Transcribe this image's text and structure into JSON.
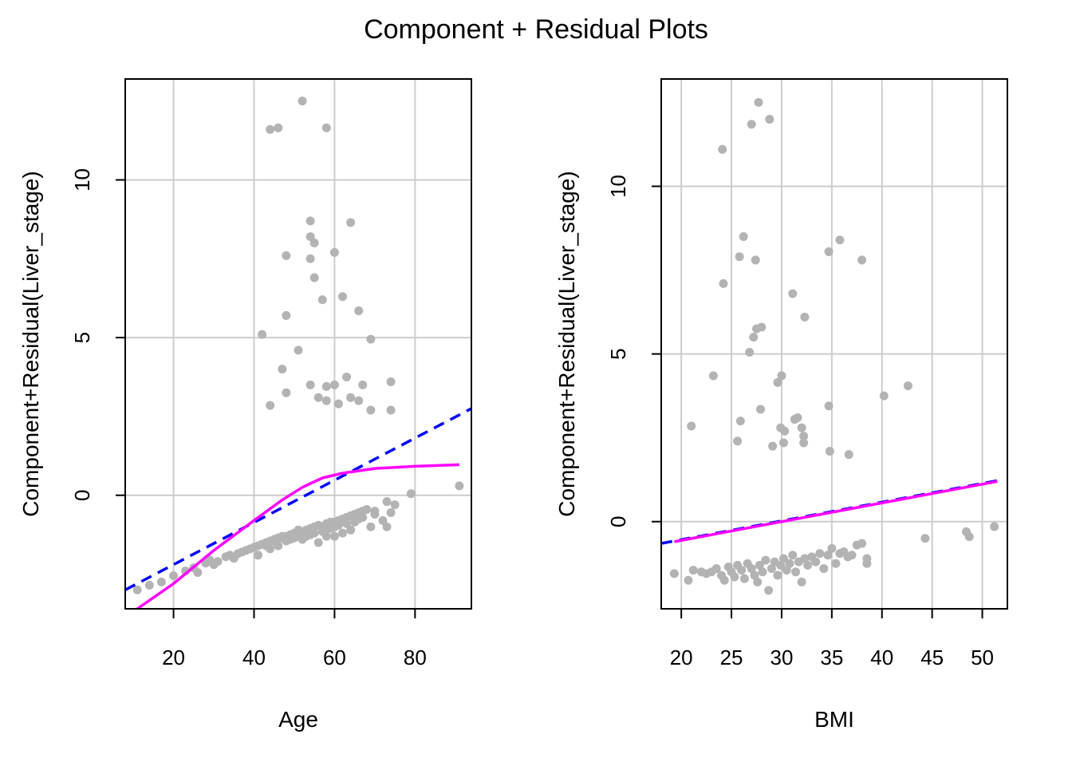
{
  "title": "Component + Residual Plots",
  "colors": {
    "points": "#b3b3b3",
    "linear_fit": "#0000ff",
    "smooth_fit": "#ff00ff",
    "grid": "#cccccc"
  },
  "chart_data": [
    {
      "type": "scatter",
      "xlabel": "Age",
      "ylabel": "Component+Residual(Liver_stage)",
      "xlim": [
        8,
        94
      ],
      "ylim": [
        -3.6,
        13.2
      ],
      "xticks": [
        20,
        40,
        60,
        80
      ],
      "yticks": [
        0,
        5,
        10
      ],
      "grid": true,
      "points": [
        [
          11,
          -3.0
        ],
        [
          14,
          -2.85
        ],
        [
          17,
          -2.75
        ],
        [
          20,
          -2.55
        ],
        [
          23,
          -2.4
        ],
        [
          25,
          -2.3
        ],
        [
          26,
          -2.45
        ],
        [
          28,
          -2.15
        ],
        [
          29,
          -2.05
        ],
        [
          30,
          -2.2
        ],
        [
          31,
          -2.1
        ],
        [
          33,
          -1.95
        ],
        [
          34,
          -1.9
        ],
        [
          35,
          -2.0
        ],
        [
          36,
          -1.85
        ],
        [
          37,
          -1.8
        ],
        [
          38,
          -1.75
        ],
        [
          39,
          -1.7
        ],
        [
          40,
          -1.65
        ],
        [
          41,
          -1.6
        ],
        [
          41,
          -1.9
        ],
        [
          42,
          -1.55
        ],
        [
          43,
          -1.6
        ],
        [
          43,
          -1.5
        ],
        [
          44,
          -1.45
        ],
        [
          44,
          -1.7
        ],
        [
          45,
          -1.45
        ],
        [
          45,
          -1.4
        ],
        [
          46,
          -1.35
        ],
        [
          46,
          -1.6
        ],
        [
          47,
          -1.35
        ],
        [
          47,
          -1.3
        ],
        [
          48,
          -1.3
        ],
        [
          48,
          -1.45
        ],
        [
          49,
          -1.25
        ],
        [
          49,
          -1.4
        ],
        [
          50,
          -1.2
        ],
        [
          50,
          -1.35
        ],
        [
          51,
          -1.2
        ],
        [
          51,
          -1.1
        ],
        [
          52,
          -1.15
        ],
        [
          52,
          -1.4
        ],
        [
          53,
          -1.1
        ],
        [
          53,
          -1.3
        ],
        [
          54,
          -1.05
        ],
        [
          54,
          -1.25
        ],
        [
          55,
          -1.0
        ],
        [
          55,
          -1.2
        ],
        [
          56,
          -1.5
        ],
        [
          56,
          -0.95
        ],
        [
          57,
          -1.0
        ],
        [
          57,
          -1.15
        ],
        [
          58,
          -0.9
        ],
        [
          58,
          -1.1
        ],
        [
          58,
          -1.3
        ],
        [
          59,
          -0.85
        ],
        [
          59,
          -1.05
        ],
        [
          60,
          -0.85
        ],
        [
          60,
          -1.0
        ],
        [
          60,
          -1.3
        ],
        [
          61,
          -0.8
        ],
        [
          61,
          -0.95
        ],
        [
          62,
          -0.75
        ],
        [
          62,
          -1.2
        ],
        [
          63,
          -0.7
        ],
        [
          63,
          -0.9
        ],
        [
          64,
          -0.65
        ],
        [
          64,
          -1.1
        ],
        [
          65,
          -0.6
        ],
        [
          65,
          -0.85
        ],
        [
          66,
          -0.55
        ],
        [
          66,
          -0.75
        ],
        [
          67,
          -0.5
        ],
        [
          67,
          -0.7
        ],
        [
          68,
          -0.45
        ],
        [
          69,
          -1.0
        ],
        [
          70,
          -0.5
        ],
        [
          70,
          -0.6
        ],
        [
          72,
          -0.8
        ],
        [
          73,
          -1.0
        ],
        [
          73,
          -0.2
        ],
        [
          74,
          -0.55
        ],
        [
          75,
          -0.3
        ],
        [
          79,
          0.05
        ],
        [
          91,
          0.3
        ],
        [
          44,
          2.85
        ],
        [
          48,
          3.25
        ],
        [
          47,
          4.0
        ],
        [
          42,
          5.1
        ],
        [
          51,
          4.6
        ],
        [
          54,
          3.5
        ],
        [
          56,
          3.1
        ],
        [
          58,
          3.0
        ],
        [
          58,
          3.45
        ],
        [
          60,
          3.5
        ],
        [
          61,
          2.9
        ],
        [
          63,
          3.75
        ],
        [
          64,
          3.1
        ],
        [
          66,
          3.0
        ],
        [
          67,
          3.5
        ],
        [
          69,
          2.7
        ],
        [
          74,
          2.7
        ],
        [
          74,
          3.6
        ],
        [
          57,
          6.2
        ],
        [
          55,
          6.9
        ],
        [
          62,
          6.3
        ],
        [
          66,
          5.85
        ],
        [
          69,
          4.95
        ],
        [
          48,
          5.7
        ],
        [
          48,
          7.6
        ],
        [
          54,
          7.5
        ],
        [
          54,
          8.2
        ],
        [
          55,
          8.0
        ],
        [
          54,
          8.7
        ],
        [
          60,
          7.7
        ],
        [
          64,
          8.65
        ],
        [
          44,
          11.6
        ],
        [
          46,
          11.65
        ],
        [
          52,
          12.5
        ],
        [
          58,
          11.65
        ]
      ],
      "linear_fit": {
        "x": [
          8,
          94
        ],
        "y": [
          -3.0,
          2.75
        ]
      },
      "smooth_fit": {
        "x": [
          11,
          20,
          30,
          40,
          47,
          52,
          57,
          62,
          70,
          80,
          91
        ],
        "y": [
          -3.6,
          -2.8,
          -1.75,
          -0.8,
          -0.15,
          0.25,
          0.55,
          0.7,
          0.85,
          0.92,
          0.97
        ]
      }
    },
    {
      "type": "scatter",
      "xlabel": "BMI",
      "ylabel": "Component+Residual(Liver_stage)",
      "xlim": [
        18,
        52.5
      ],
      "ylim": [
        -2.6,
        13.2
      ],
      "xticks": [
        20,
        25,
        30,
        35,
        40,
        45,
        50
      ],
      "yticks": [
        0,
        5,
        10
      ],
      "grid": true,
      "points": [
        [
          19.3,
          -1.55
        ],
        [
          20.7,
          -1.75
        ],
        [
          21.2,
          -1.45
        ],
        [
          22.0,
          -1.5
        ],
        [
          22.5,
          -1.55
        ],
        [
          23.0,
          -1.5
        ],
        [
          23.5,
          -1.4
        ],
        [
          24.0,
          -1.6
        ],
        [
          24.3,
          -1.75
        ],
        [
          24.7,
          -1.35
        ],
        [
          25.0,
          -1.5
        ],
        [
          25.3,
          -1.65
        ],
        [
          25.6,
          -1.3
        ],
        [
          26.0,
          -1.45
        ],
        [
          26.3,
          -1.7
        ],
        [
          26.6,
          -1.25
        ],
        [
          27.0,
          -1.4
        ],
        [
          27.3,
          -1.6
        ],
        [
          27.6,
          -1.8
        ],
        [
          27.8,
          -1.3
        ],
        [
          28.1,
          -1.5
        ],
        [
          28.4,
          -1.15
        ],
        [
          28.7,
          -2.05
        ],
        [
          29.0,
          -1.4
        ],
        [
          29.3,
          -1.2
        ],
        [
          29.6,
          -1.6
        ],
        [
          29.9,
          -1.3
        ],
        [
          30.2,
          -1.1
        ],
        [
          30.5,
          -1.45
        ],
        [
          30.8,
          -1.25
        ],
        [
          31.1,
          -1.0
        ],
        [
          31.4,
          -1.5
        ],
        [
          31.7,
          -1.2
        ],
        [
          32.0,
          -1.8
        ],
        [
          32.3,
          -1.1
        ],
        [
          32.6,
          -1.3
        ],
        [
          33.0,
          -1.05
        ],
        [
          33.4,
          -1.2
        ],
        [
          33.8,
          -0.95
        ],
        [
          34.2,
          -1.4
        ],
        [
          34.6,
          -1.0
        ],
        [
          35.0,
          -0.8
        ],
        [
          35.4,
          -1.25
        ],
        [
          35.8,
          -0.95
        ],
        [
          36.2,
          -0.9
        ],
        [
          36.6,
          -1.05
        ],
        [
          37.0,
          -1.0
        ],
        [
          37.5,
          -0.7
        ],
        [
          38.0,
          -0.65
        ],
        [
          38.5,
          -1.1
        ],
        [
          38.5,
          -1.25
        ],
        [
          44.3,
          -0.5
        ],
        [
          48.4,
          -0.3
        ],
        [
          48.7,
          -0.45
        ],
        [
          51.2,
          -0.15
        ],
        [
          21.0,
          2.85
        ],
        [
          23.2,
          4.35
        ],
        [
          24.1,
          11.1
        ],
        [
          24.2,
          7.1
        ],
        [
          25.8,
          7.9
        ],
        [
          25.9,
          3.0
        ],
        [
          26.2,
          8.5
        ],
        [
          25.6,
          2.4
        ],
        [
          26.8,
          5.05
        ],
        [
          27.2,
          5.5
        ],
        [
          27.5,
          5.75
        ],
        [
          27.4,
          7.8
        ],
        [
          27.7,
          12.5
        ],
        [
          27.0,
          11.85
        ],
        [
          28.0,
          5.8
        ],
        [
          28.8,
          12.0
        ],
        [
          27.9,
          3.35
        ],
        [
          29.1,
          2.25
        ],
        [
          29.6,
          4.15
        ],
        [
          29.9,
          2.8
        ],
        [
          30.0,
          4.35
        ],
        [
          30.2,
          2.35
        ],
        [
          30.3,
          2.7
        ],
        [
          31.1,
          6.8
        ],
        [
          31.3,
          3.05
        ],
        [
          31.6,
          3.1
        ],
        [
          32.0,
          2.8
        ],
        [
          32.2,
          2.55
        ],
        [
          32.3,
          6.1
        ],
        [
          32.2,
          2.35
        ],
        [
          34.7,
          8.05
        ],
        [
          34.7,
          3.45
        ],
        [
          34.8,
          2.1
        ],
        [
          35.8,
          8.4
        ],
        [
          36.7,
          2.0
        ],
        [
          38.0,
          7.8
        ],
        [
          40.2,
          3.75
        ],
        [
          42.6,
          4.05
        ]
      ],
      "linear_fit": {
        "x": [
          18,
          52
        ],
        "y": [
          -0.65,
          1.25
        ]
      },
      "smooth_fit": {
        "x": [
          19.3,
          51.5
        ],
        "y": [
          -0.6,
          1.2
        ]
      }
    }
  ]
}
